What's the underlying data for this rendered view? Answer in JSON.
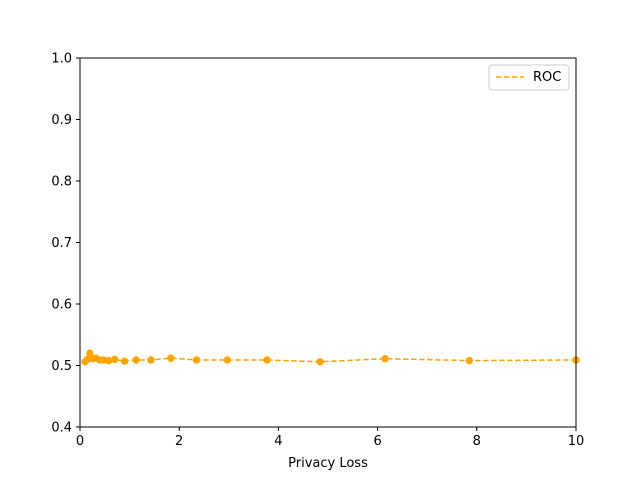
{
  "chart_data": {
    "type": "line",
    "title": "",
    "xlabel": "Privacy Loss",
    "ylabel": "",
    "xlim": [
      0,
      10
    ],
    "ylim": [
      0.4,
      1.0
    ],
    "xticks": [
      0,
      2,
      4,
      6,
      8,
      10
    ],
    "xtick_labels": [
      "0",
      "2",
      "4",
      "6",
      "8",
      "10"
    ],
    "yticks": [
      0.4,
      0.5,
      0.6,
      0.7,
      0.8,
      0.9,
      1.0
    ],
    "ytick_labels": [
      "0.4",
      "0.5",
      "0.6",
      "0.7",
      "0.8",
      "0.9",
      "1.0"
    ],
    "grid": false,
    "legend_position": "top-right",
    "series": [
      {
        "name": "ROC",
        "color": "#ffa500",
        "line_style": "dashed",
        "marker": "circle",
        "x": [
          0.1,
          0.15,
          0.2,
          0.25,
          0.32,
          0.4,
          0.48,
          0.58,
          0.7,
          0.9,
          1.13,
          1.43,
          1.83,
          2.35,
          2.97,
          3.77,
          4.84,
          6.15,
          7.85,
          10.0
        ],
        "y": [
          0.506,
          0.51,
          0.52,
          0.511,
          0.512,
          0.509,
          0.509,
          0.508,
          0.51,
          0.507,
          0.509,
          0.509,
          0.512,
          0.509,
          0.509,
          0.509,
          0.506,
          0.511,
          0.508,
          0.509
        ]
      }
    ]
  }
}
